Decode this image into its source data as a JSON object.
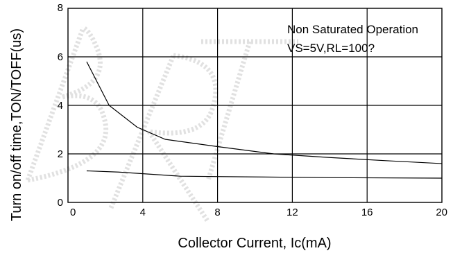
{
  "chart_data": {
    "type": "line",
    "title": "",
    "xlabel": "Collector Current, Ic(mA)",
    "ylabel": "Turn on/off time,TON/TOFF(us)",
    "xlim": [
      0,
      20
    ],
    "ylim": [
      0,
      8
    ],
    "x_ticks": [
      0,
      4,
      8,
      12,
      16,
      20
    ],
    "y_ticks": [
      0,
      2,
      4,
      6,
      8
    ],
    "x_tick_labels": [
      "0",
      "4",
      "8",
      "12",
      "16",
      "20"
    ],
    "y_tick_labels": [
      "0",
      "2",
      "4",
      "6",
      "8"
    ],
    "grid": true,
    "annotations": [
      "Non Saturated Operation",
      "VS=5V,RL=100?"
    ],
    "watermark": "BRT",
    "series": [
      {
        "x": [
          1,
          2.2,
          3.7,
          5.2,
          8,
          11,
          14,
          17,
          20
        ],
        "y": [
          5.8,
          4.0,
          3.1,
          2.6,
          2.3,
          2.0,
          1.85,
          1.72,
          1.6
        ]
      },
      {
        "x": [
          1,
          2.7,
          6,
          10,
          14,
          20
        ],
        "y": [
          1.3,
          1.25,
          1.08,
          1.05,
          1.02,
          1.0
        ]
      }
    ]
  }
}
